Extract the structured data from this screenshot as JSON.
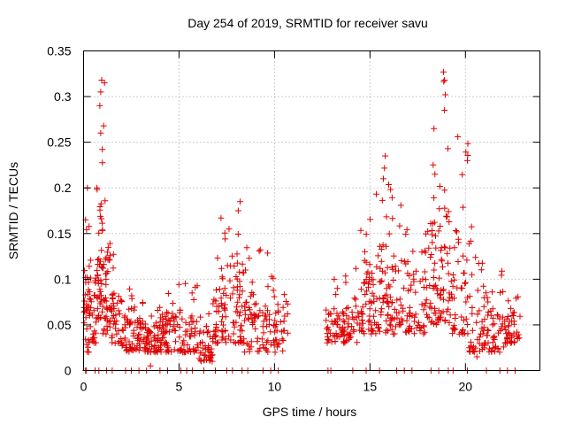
{
  "chart_data": {
    "type": "scatter",
    "title": "Day 254 of 2019, SRMTID for receiver savu",
    "xlabel": "GPS time / hours",
    "ylabel": "SRMTID / TECUs",
    "xlim": [
      0,
      23.9
    ],
    "ylim": [
      0,
      0.35
    ],
    "xticks": [
      0,
      5,
      10,
      15,
      20
    ],
    "xtick_labels": [
      "0",
      "5",
      "10",
      "15",
      "20"
    ],
    "yticks": [
      0,
      0.05,
      0.1,
      0.15,
      0.2,
      0.25,
      0.3,
      0.35
    ],
    "ytick_labels": [
      "0",
      "0.05",
      "0.1",
      "0.15",
      "0.2",
      "0.25",
      "0.3",
      "0.35"
    ],
    "grid": true,
    "marker": "+",
    "series": [
      {
        "name": "SRMTID",
        "color": "#e00000",
        "envelope": {
          "description": "Dense point cloud approximated by binned ranges: [x_start, x_end, y_low, y_high, points]",
          "bins": [
            [
              0.0,
              0.3,
              0.02,
              0.17,
              30
            ],
            [
              0.3,
              0.7,
              0.03,
              0.13,
              30
            ],
            [
              0.7,
              1.0,
              0.05,
              0.32,
              45
            ],
            [
              1.0,
              1.4,
              0.04,
              0.2,
              40
            ],
            [
              1.4,
              2.0,
              0.03,
              0.13,
              40
            ],
            [
              2.0,
              3.0,
              0.02,
              0.09,
              60
            ],
            [
              3.0,
              4.0,
              0.02,
              0.08,
              60
            ],
            [
              4.0,
              5.0,
              0.02,
              0.1,
              60
            ],
            [
              5.0,
              6.0,
              0.02,
              0.11,
              55
            ],
            [
              6.0,
              6.8,
              0.01,
              0.08,
              45
            ],
            [
              6.8,
              7.5,
              0.03,
              0.17,
              50
            ],
            [
              7.5,
              8.4,
              0.03,
              0.19,
              55
            ],
            [
              8.4,
              9.5,
              0.02,
              0.14,
              55
            ],
            [
              9.5,
              10.7,
              0.02,
              0.13,
              55
            ],
            [
              12.7,
              13.5,
              0.03,
              0.1,
              40
            ],
            [
              13.5,
              14.5,
              0.03,
              0.12,
              50
            ],
            [
              14.5,
              15.3,
              0.04,
              0.17,
              55
            ],
            [
              15.3,
              16.1,
              0.04,
              0.23,
              55
            ],
            [
              16.1,
              17.0,
              0.04,
              0.19,
              50
            ],
            [
              17.0,
              18.0,
              0.04,
              0.15,
              50
            ],
            [
              18.0,
              18.6,
              0.05,
              0.26,
              40
            ],
            [
              18.6,
              19.2,
              0.05,
              0.33,
              45
            ],
            [
              19.2,
              20.2,
              0.04,
              0.25,
              50
            ],
            [
              20.2,
              21.0,
              0.02,
              0.17,
              45
            ],
            [
              21.0,
              22.0,
              0.02,
              0.11,
              50
            ],
            [
              22.0,
              22.9,
              0.03,
              0.09,
              45
            ]
          ]
        },
        "highlight_points": [
          [
            0.95,
            0.318
          ],
          [
            1.1,
            0.315
          ],
          [
            0.9,
            0.305
          ],
          [
            0.85,
            0.29
          ],
          [
            1.05,
            0.268
          ],
          [
            0.7,
            0.2
          ],
          [
            0.2,
            0.2
          ],
          [
            0.1,
            0.165
          ],
          [
            7.2,
            0.167
          ],
          [
            8.2,
            0.185
          ],
          [
            8.1,
            0.175
          ],
          [
            15.8,
            0.235
          ],
          [
            15.7,
            0.21
          ],
          [
            18.35,
            0.265
          ],
          [
            18.4,
            0.215
          ],
          [
            18.85,
            0.327
          ],
          [
            18.9,
            0.318
          ],
          [
            18.95,
            0.302
          ],
          [
            18.9,
            0.285
          ],
          [
            19.6,
            0.256
          ],
          [
            20.1,
            0.23
          ],
          [
            3.5,
            0.005
          ],
          [
            6.6,
            0.012
          ],
          [
            20.6,
            0.015
          ]
        ],
        "baseline_zero_points": [
          0.1,
          0.15,
          0.6,
          0.8,
          1.2,
          1.5,
          2.2,
          2.5,
          2.9,
          3.3,
          4.0,
          4.4,
          5.1,
          5.4,
          5.7,
          6.3,
          6.9,
          7.5,
          7.8,
          8.3,
          8.6,
          9.4,
          9.8,
          10.2,
          12.8,
          12.95,
          14.1,
          14.8,
          15.5,
          16.4,
          16.8,
          17.2,
          18.2,
          18.6,
          19.1,
          19.35,
          20.1,
          21.1,
          21.8,
          22.2,
          22.6
        ]
      }
    ]
  }
}
